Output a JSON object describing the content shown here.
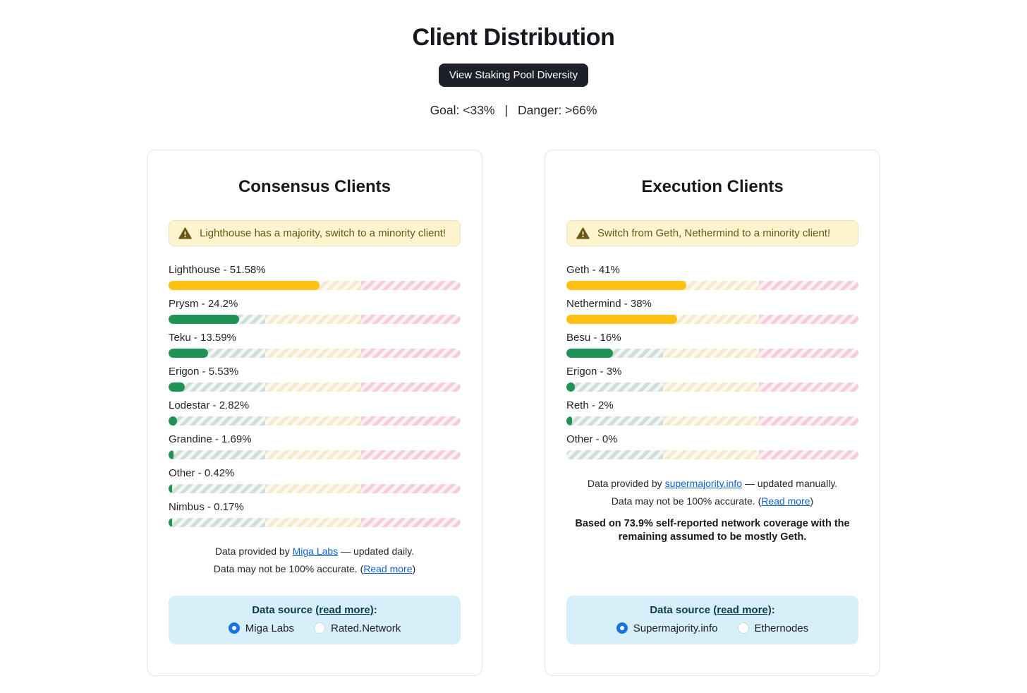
{
  "header": {
    "title": "Client Distribution",
    "button_label": "View Staking Pool Diversity",
    "goal_text": "Goal: <33%",
    "separator": "|",
    "danger_text": "Danger: >66%"
  },
  "thresholds": {
    "goal_pct": 33,
    "danger_pct": 66
  },
  "colors": {
    "fill_ok": "#1f9356",
    "fill_warn": "#fdc013",
    "stripe_ok": "#cddfd6",
    "stripe_warn": "#f6e9cd",
    "stripe_danger": "#f3ced6",
    "warning_bg": "#fcf3cf",
    "warning_text": "#6b5617",
    "radio_selected": "#1a73e8",
    "link_blue": "#0f62d6",
    "datasource_bg": "#d6eff8",
    "button_bg": "#1d2127"
  },
  "cards": [
    {
      "id": "consensus",
      "title": "Consensus Clients",
      "warning": "Lighthouse has a majority, switch to a minority client!",
      "clients": [
        {
          "name": "Lighthouse",
          "pct": 51.58,
          "label": "Lighthouse - 51.58%"
        },
        {
          "name": "Prysm",
          "pct": 24.2,
          "label": "Prysm - 24.2%"
        },
        {
          "name": "Teku",
          "pct": 13.59,
          "label": "Teku - 13.59%"
        },
        {
          "name": "Erigon",
          "pct": 5.53,
          "label": "Erigon - 5.53%"
        },
        {
          "name": "Lodestar",
          "pct": 2.82,
          "label": "Lodestar - 2.82%"
        },
        {
          "name": "Grandine",
          "pct": 1.69,
          "label": "Grandine - 1.69%"
        },
        {
          "name": "Other",
          "pct": 0.42,
          "label": "Other - 0.42%"
        },
        {
          "name": "Nimbus",
          "pct": 0.17,
          "label": "Nimbus - 0.17%"
        }
      ],
      "provider_line": {
        "prefix": "Data provided by ",
        "link": "Miga Labs",
        "suffix": " — updated daily."
      },
      "accuracy_line": {
        "prefix": "Data may not be 100% accurate. (",
        "link": "Read more",
        "suffix": ")"
      },
      "note": "",
      "datasource": {
        "label_prefix": "Data source ",
        "label_link": "(read more)",
        "label_suffix": ":",
        "options": [
          {
            "label": "Miga Labs",
            "selected": true
          },
          {
            "label": "Rated.Network",
            "selected": false
          }
        ]
      }
    },
    {
      "id": "execution",
      "title": "Execution Clients",
      "warning": "Switch from Geth, Nethermind to a minority client!",
      "clients": [
        {
          "name": "Geth",
          "pct": 41,
          "label": "Geth - 41%"
        },
        {
          "name": "Nethermind",
          "pct": 38,
          "label": "Nethermind - 38%"
        },
        {
          "name": "Besu",
          "pct": 16,
          "label": "Besu - 16%"
        },
        {
          "name": "Erigon",
          "pct": 3,
          "label": "Erigon - 3%"
        },
        {
          "name": "Reth",
          "pct": 2,
          "label": "Reth - 2%"
        },
        {
          "name": "Other",
          "pct": 0,
          "label": "Other - 0%"
        }
      ],
      "provider_line": {
        "prefix": "Data provided by ",
        "link": "supermajority.info",
        "suffix": " — updated manually."
      },
      "accuracy_line": {
        "prefix": "Data may not be 100% accurate. (",
        "link": "Read more",
        "suffix": ")"
      },
      "note": "Based on 73.9% self-reported network coverage with the remaining assumed to be mostly Geth.",
      "datasource": {
        "label_prefix": "Data source ",
        "label_link": "(read more)",
        "label_suffix": ":",
        "options": [
          {
            "label": "Supermajority.info",
            "selected": true
          },
          {
            "label": "Ethernodes",
            "selected": false
          }
        ]
      }
    }
  ]
}
